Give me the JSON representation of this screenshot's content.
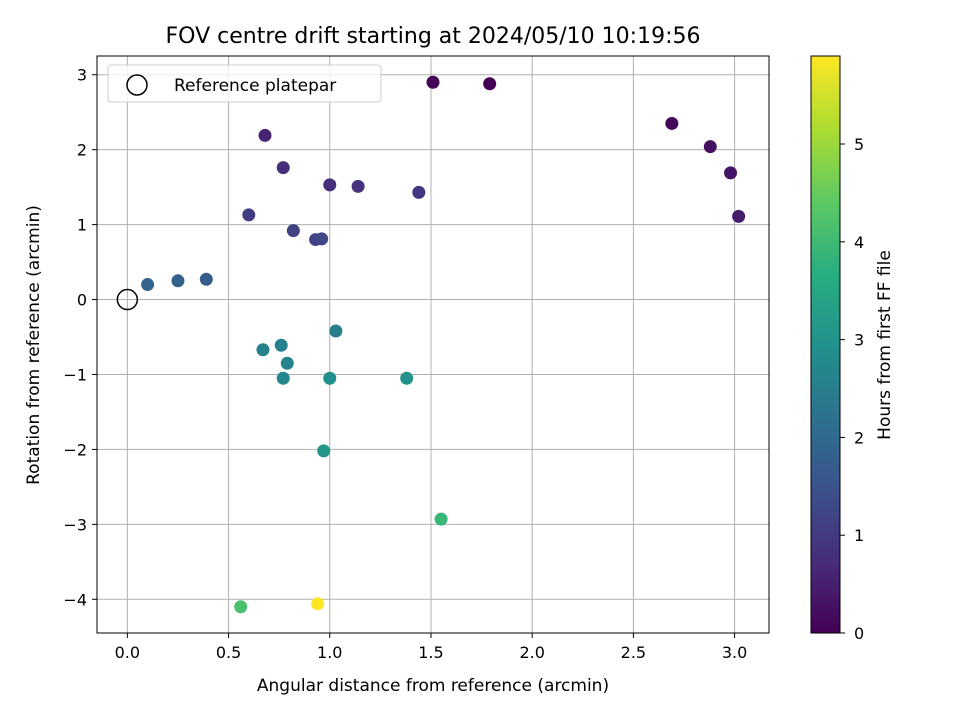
{
  "chart_data": {
    "type": "scatter",
    "title": "FOV centre drift starting at 2024/05/10 10:19:56",
    "xlabel": "Angular distance from reference (arcmin)",
    "ylabel": "Rotation from reference (arcmin)",
    "xlim": [
      -0.15,
      3.17
    ],
    "ylim": [
      -4.45,
      3.25
    ],
    "xticks": [
      0.0,
      0.5,
      1.0,
      1.5,
      2.0,
      2.5,
      3.0
    ],
    "xtick_labels": [
      "0.0",
      "0.5",
      "1.0",
      "1.5",
      "2.0",
      "2.5",
      "3.0"
    ],
    "yticks": [
      -4,
      -3,
      -2,
      -1,
      0,
      1,
      2,
      3
    ],
    "ytick_labels": [
      "−4",
      "−3",
      "−2",
      "−1",
      "0",
      "1",
      "2",
      "3"
    ],
    "grid": true,
    "legend": {
      "position": "top-left",
      "entries": [
        {
          "label": "Reference platepar",
          "marker": "open-circle"
        }
      ]
    },
    "reference_point": {
      "x": 0.0,
      "y": 0.0
    },
    "colorbar": {
      "label": "Hours from first FF file",
      "colormap": "viridis",
      "range": [
        0,
        5.9
      ],
      "ticks": [
        0,
        1,
        2,
        3,
        4,
        5
      ],
      "tick_labels": [
        "0",
        "1",
        "2",
        "3",
        "4",
        "5"
      ]
    },
    "points": [
      {
        "x": 1.51,
        "y": 2.9,
        "t": 0.05
      },
      {
        "x": 1.79,
        "y": 2.88,
        "t": 0.0
      },
      {
        "x": 2.69,
        "y": 2.35,
        "t": 0.1
      },
      {
        "x": 2.88,
        "y": 2.04,
        "t": 0.25
      },
      {
        "x": 2.98,
        "y": 1.69,
        "t": 0.35
      },
      {
        "x": 3.02,
        "y": 1.11,
        "t": 0.45
      },
      {
        "x": 0.68,
        "y": 2.19,
        "t": 0.6
      },
      {
        "x": 0.77,
        "y": 1.76,
        "t": 0.75
      },
      {
        "x": 1.0,
        "y": 1.53,
        "t": 0.8
      },
      {
        "x": 1.14,
        "y": 1.51,
        "t": 0.85
      },
      {
        "x": 1.44,
        "y": 1.43,
        "t": 0.9
      },
      {
        "x": 0.6,
        "y": 1.13,
        "t": 1.05
      },
      {
        "x": 0.82,
        "y": 0.92,
        "t": 1.15
      },
      {
        "x": 0.93,
        "y": 0.8,
        "t": 1.2
      },
      {
        "x": 0.96,
        "y": 0.81,
        "t": 1.25
      },
      {
        "x": 0.39,
        "y": 0.27,
        "t": 1.7
      },
      {
        "x": 0.25,
        "y": 0.25,
        "t": 1.8
      },
      {
        "x": 0.1,
        "y": 0.2,
        "t": 1.9
      },
      {
        "x": 1.03,
        "y": -0.42,
        "t": 2.5
      },
      {
        "x": 0.67,
        "y": -0.67,
        "t": 2.6
      },
      {
        "x": 0.76,
        "y": -0.61,
        "t": 2.55
      },
      {
        "x": 0.79,
        "y": -0.85,
        "t": 2.65
      },
      {
        "x": 0.77,
        "y": -1.05,
        "t": 2.7
      },
      {
        "x": 1.0,
        "y": -1.05,
        "t": 2.9
      },
      {
        "x": 1.38,
        "y": -1.05,
        "t": 3.0
      },
      {
        "x": 0.97,
        "y": -2.02,
        "t": 3.1
      },
      {
        "x": 1.55,
        "y": -2.93,
        "t": 3.9
      },
      {
        "x": 0.56,
        "y": -4.1,
        "t": 4.15
      },
      {
        "x": 0.94,
        "y": -4.06,
        "t": 5.9
      }
    ]
  }
}
